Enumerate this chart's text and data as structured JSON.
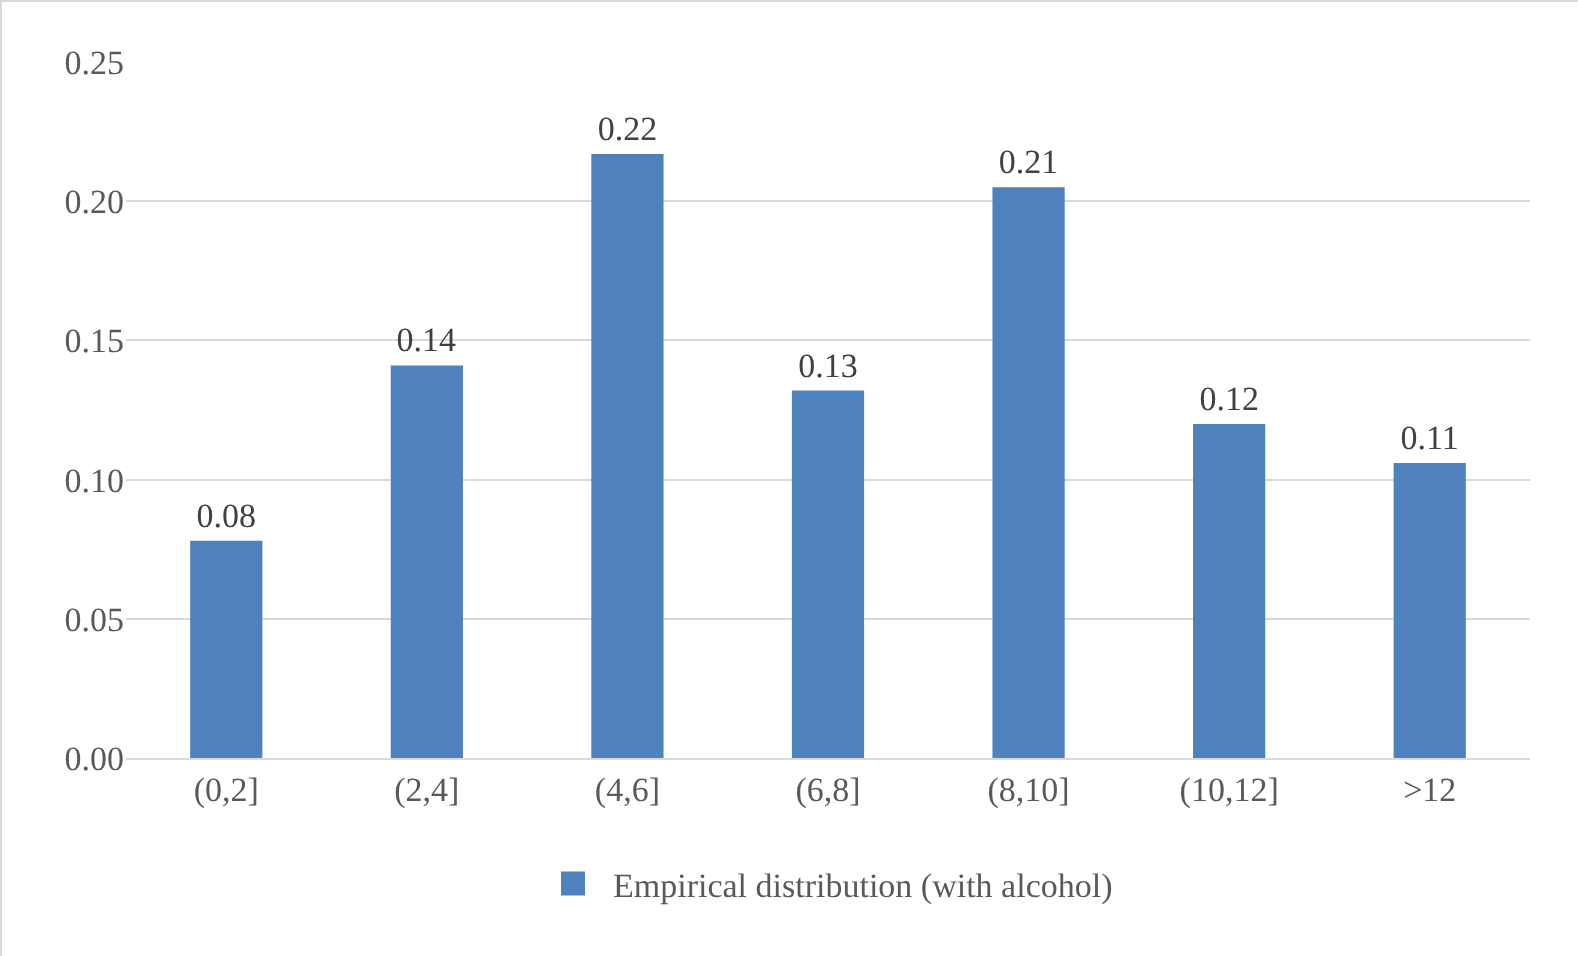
{
  "chart_data": {
    "type": "bar",
    "categories": [
      "(0,2]",
      "(2,4]",
      "(4,6]",
      "(6,8]",
      "(8,10]",
      "(10,12]",
      ">12"
    ],
    "series": [
      {
        "name": "Empirical distribution (with alcohol)",
        "color": "#4f81bd",
        "values": [
          0.078,
          0.141,
          0.217,
          0.132,
          0.205,
          0.12,
          0.106
        ],
        "value_labels": [
          "0.08",
          "0.14",
          "0.22",
          "0.13",
          "0.21",
          "0.12",
          "0.11"
        ]
      }
    ],
    "ylim": [
      0,
      0.25
    ],
    "yticks": [
      {
        "value": 0,
        "label": "0.00"
      },
      {
        "value": 0.05,
        "label": "0.05"
      },
      {
        "value": 0.1,
        "label": "0.10"
      },
      {
        "value": 0.15,
        "label": "0.15"
      },
      {
        "value": 0.2,
        "label": "0.20"
      },
      {
        "value": 0.25,
        "label": "0.25"
      }
    ],
    "grid": "y",
    "legend": "bottom"
  }
}
